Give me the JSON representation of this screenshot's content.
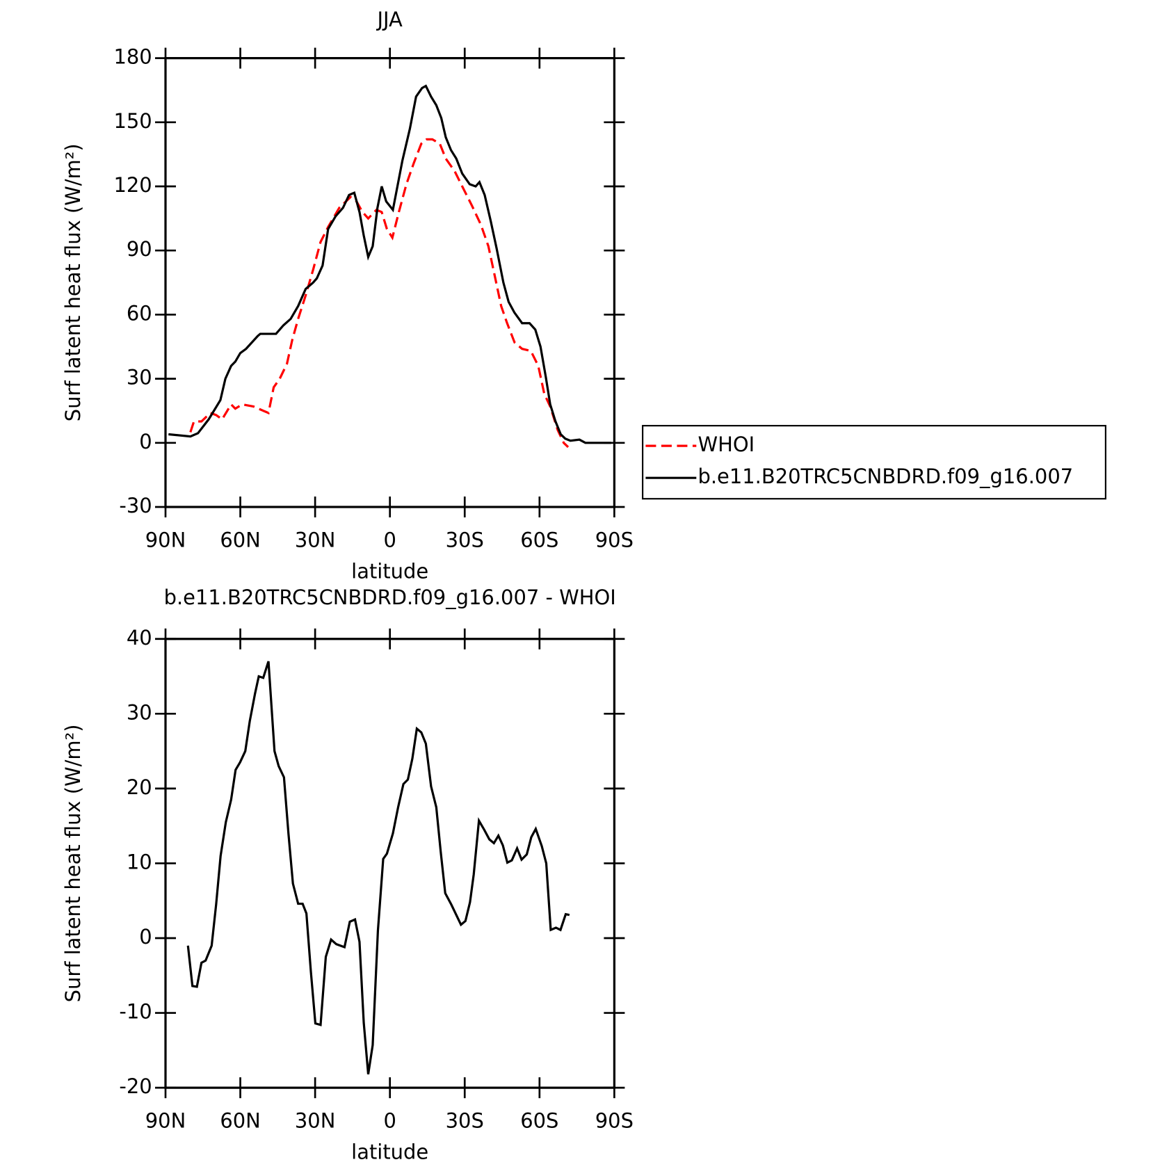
{
  "chart_data": [
    {
      "type": "line",
      "title": "JJA",
      "xlabel": "latitude",
      "ylabel": "Surf latent heat flux (W/m²)",
      "xlim": [
        90,
        -90
      ],
      "ylim": [
        -30,
        180
      ],
      "xticks": [
        {
          "value": 90,
          "label": "90N"
        },
        {
          "value": 60,
          "label": "60N"
        },
        {
          "value": 30,
          "label": "30N"
        },
        0,
        {
          "value": -30,
          "label": "30S"
        },
        {
          "value": -60,
          "label": "60S"
        },
        {
          "value": -90,
          "label": "90S"
        }
      ],
      "yticks": [
        -30,
        0,
        30,
        60,
        90,
        120,
        150,
        180
      ],
      "legend": "outside-right",
      "series": [
        {
          "name": "WHOI",
          "color": "#ff0000",
          "dash": true,
          "x": [
            80,
            78.6,
            75.6,
            72,
            69.7,
            67.3,
            63.7,
            62,
            59.2,
            54.7,
            48.7,
            46.6,
            44.2,
            41.3,
            39.2,
            36.8,
            33.8,
            30.8,
            27.8,
            24.8,
            20.3,
            15.8,
            13.4,
            11,
            8.7,
            5.4,
            3.3,
            1.2,
            -1,
            -3.6,
            -6.6,
            -9.6,
            -12.6,
            -14.7,
            -17,
            -20,
            -22.4,
            -26,
            -29,
            -32.9,
            -36.5,
            -39.5,
            -41.9,
            -44.6,
            -47,
            -50,
            -53,
            -56.5,
            -59.5,
            -61.9,
            -64.3,
            -67.3,
            -69.7,
            -71.5
          ],
          "values": [
            5,
            10,
            10,
            14,
            13,
            11,
            18,
            16,
            18,
            17,
            14,
            26,
            30,
            37,
            48,
            58,
            69,
            81,
            94,
            101,
            110,
            115,
            113,
            108,
            105,
            109,
            108,
            100,
            96,
            108,
            121,
            131,
            140,
            142,
            142,
            140,
            133,
            127,
            120,
            111,
            102,
            92,
            79,
            64,
            56,
            47,
            44,
            43,
            36,
            23,
            17,
            6,
            0,
            -2
          ]
        },
        {
          "name": "b.e11.B20TRC5CNBDRD.f09_g16.007",
          "color": "#000000",
          "dash": false,
          "x": [
            88.8,
            80,
            77,
            72.7,
            68,
            66,
            63.7,
            62,
            60,
            57.7,
            53,
            52,
            48.7,
            45.7,
            42.7,
            39.8,
            36.8,
            33.8,
            30.8,
            29.3,
            27,
            24.8,
            21.8,
            18.8,
            16.4,
            14.3,
            12.2,
            10.5,
            8.7,
            6.9,
            5,
            3.3,
            1.5,
            -1.2,
            -5,
            -8,
            -10.5,
            -12.9,
            -14.4,
            -16.5,
            -18.6,
            -20.6,
            -22.4,
            -24.5,
            -26.6,
            -29,
            -32,
            -34.4,
            -35.9,
            -38,
            -40.4,
            -42.8,
            -45.5,
            -47.6,
            -49.9,
            -53,
            -56,
            -58.3,
            -60.4,
            -62.5,
            -64.3,
            -66.4,
            -68.5,
            -70.3,
            -72.4,
            -76,
            -78.4,
            -82.8,
            -88.8
          ],
          "values": [
            4,
            3,
            4.5,
            11,
            20,
            30,
            36,
            38,
            42,
            44,
            50,
            51,
            51,
            51,
            55,
            58,
            64,
            72,
            75,
            77,
            83,
            100,
            106,
            110,
            116,
            117,
            108,
            97,
            87,
            92,
            110,
            120,
            113,
            109,
            132,
            147,
            162,
            166,
            167,
            162,
            158,
            152,
            143,
            137,
            133,
            126,
            121,
            120,
            122,
            116,
            104,
            91,
            75,
            66,
            61,
            56,
            56,
            53,
            45,
            31,
            18,
            10,
            4,
            2,
            1,
            1.5,
            0,
            0,
            0
          ]
        }
      ]
    },
    {
      "type": "line",
      "title": "b.e11.B20TRC5CNBDRD.f09_g16.007 - WHOI",
      "xlabel": "latitude",
      "ylabel": "Surf latent heat flux (W/m²)",
      "xlim": [
        90,
        -90
      ],
      "ylim": [
        -20,
        40
      ],
      "xticks": [
        {
          "value": 90,
          "label": "90N"
        },
        {
          "value": 60,
          "label": "60N"
        },
        {
          "value": 30,
          "label": "30N"
        },
        0,
        {
          "value": -30,
          "label": "30S"
        },
        {
          "value": -60,
          "label": "60S"
        },
        {
          "value": -90,
          "label": "90S"
        }
      ],
      "yticks": [
        -20,
        -10,
        0,
        10,
        20,
        30,
        40
      ],
      "color": "#000000",
      "x": [
        81,
        79.2,
        77.4,
        75.6,
        73.9,
        71.5,
        69.7,
        67.9,
        65.8,
        63.7,
        61.9,
        60.1,
        58,
        56.2,
        54.1,
        52.6,
        50.8,
        48.7,
        46.3,
        44.6,
        42.5,
        40.7,
        38.9,
        36.8,
        35,
        33.5,
        31.7,
        29.9,
        27.8,
        25.7,
        23.6,
        21.5,
        18.2,
        16.1,
        14,
        12.2,
        10.5,
        8.7,
        6.9,
        4.8,
        2.7,
        1.2,
        -1.2,
        -3.3,
        -5.4,
        -7.2,
        -9,
        -10.8,
        -12.6,
        -14.4,
        -16.5,
        -18.6,
        -20.4,
        -22.2,
        -24.6,
        -28.5,
        -30.3,
        -32.1,
        -33.6,
        -35.7,
        -37.8,
        -39.9,
        -41.7,
        -43.5,
        -45.3,
        -47.1,
        -48.9,
        -51,
        -52.8,
        -54.9,
        -56.7,
        -58.5,
        -60.9,
        -62.7,
        -64.5,
        -66.6,
        -68.4,
        -70.5,
        -72
      ],
      "values": [
        -1,
        -6.4,
        -6.5,
        -3.3,
        -3,
        -1,
        4.5,
        11,
        15.5,
        18.5,
        22.5,
        23.5,
        25,
        29,
        32.7,
        35,
        34.8,
        37,
        25,
        23,
        21.5,
        14,
        7.3,
        4.6,
        4.6,
        3.3,
        -4.5,
        -11.4,
        -11.6,
        -2.5,
        -0.2,
        -0.8,
        -1.2,
        2.2,
        2.5,
        -0.5,
        -11.3,
        -18.2,
        -14.3,
        1,
        10.6,
        11.3,
        14,
        17.5,
        20.6,
        21.2,
        24,
        28,
        27.5,
        26,
        20.3,
        17.5,
        11.5,
        6,
        4.5,
        1.8,
        2.3,
        4.8,
        8.5,
        15.7,
        14.5,
        13.2,
        12.7,
        13.7,
        12.4,
        10.1,
        10.4,
        12,
        10.5,
        11.2,
        13.5,
        14.6,
        12.3,
        10,
        1.1,
        1.4,
        1.1,
        3.2,
        3.1
      ]
    }
  ]
}
